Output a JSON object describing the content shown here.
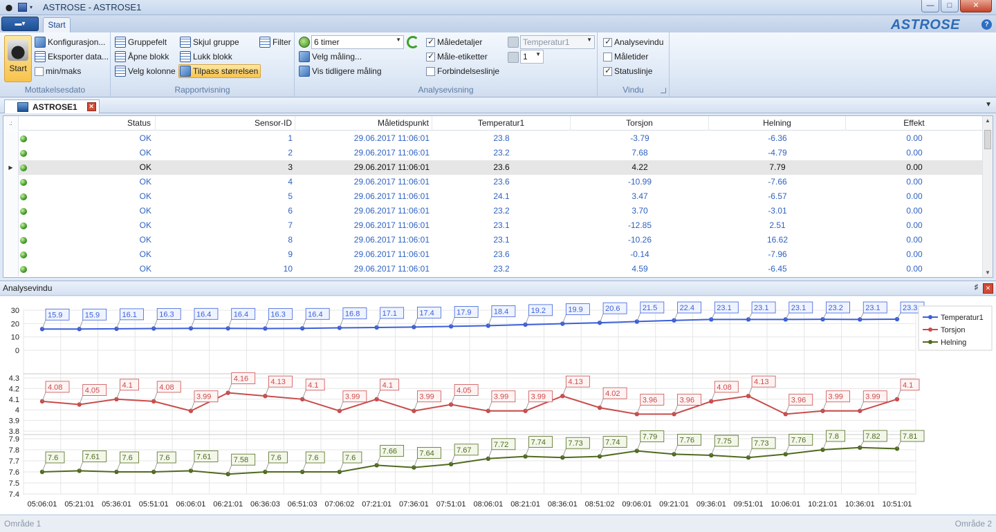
{
  "window": {
    "title": "ASTROSE - ASTROSE1"
  },
  "ribbon": {
    "tab_start": "Start",
    "brand": "ASTROSE",
    "mottak": {
      "start": "Start",
      "konfig": "Konfigurasjon...",
      "eksport": "Eksporter data...",
      "minmaks": "min/maks",
      "label": "Mottakelsesdato"
    },
    "rapport": {
      "gruppefelt": "Gruppefelt",
      "skjul": "Skjul gruppe",
      "filter": "Filter",
      "apne": "Åpne blokk",
      "lukk": "Lukk blokk",
      "velgkol": "Velg kolonne",
      "tilpass": "Tilpass størrelsen",
      "label": "Rapportvisning"
    },
    "analyse": {
      "period": "6 timer",
      "velgmaling": "Velg måling...",
      "vistidl": "Vis tidligere måling",
      "maledetaljer": "Måledetaljer",
      "maleetiketter": "Måle-etiketter",
      "forbindelse": "Forbindelseslinje",
      "temp_combo": "Temperatur1",
      "num_combo": "1",
      "label": "Analysevisning"
    },
    "vindu": {
      "analysevindu": "Analysevindu",
      "maletider": "Måletider",
      "statuslinje": "Statuslinje",
      "label": "Vindu"
    }
  },
  "doc_tab": {
    "label": "ASTROSE1"
  },
  "grid": {
    "headers": [
      "Status",
      "Sensor-ID",
      "Måletidspunkt",
      "Temperatur1",
      "Torsjon",
      "Helning",
      "Effekt"
    ],
    "rows": [
      [
        "OK",
        "1",
        "29.06.2017 11:06:01",
        "23.8",
        "-3.79",
        "-6.36",
        "0.00"
      ],
      [
        "OK",
        "2",
        "29.06.2017 11:06:01",
        "23.2",
        "7.68",
        "-4.79",
        "0.00"
      ],
      [
        "OK",
        "3",
        "29.06.2017 11:06:01",
        "23.6",
        "4.22",
        "7.79",
        "0.00"
      ],
      [
        "OK",
        "4",
        "29.06.2017 11:06:01",
        "23.6",
        "-10.99",
        "-7.66",
        "0.00"
      ],
      [
        "OK",
        "5",
        "29.06.2017 11:06:01",
        "24.1",
        "3.47",
        "-6.57",
        "0.00"
      ],
      [
        "OK",
        "6",
        "29.06.2017 11:06:01",
        "23.2",
        "3.70",
        "-3.01",
        "0.00"
      ],
      [
        "OK",
        "7",
        "29.06.2017 11:06:01",
        "23.1",
        "-12.85",
        "2.51",
        "0.00"
      ],
      [
        "OK",
        "8",
        "29.06.2017 11:06:01",
        "23.1",
        "-10.26",
        "16.62",
        "0.00"
      ],
      [
        "OK",
        "9",
        "29.06.2017 11:06:01",
        "23.6",
        "-0.14",
        "-7.96",
        "0.00"
      ],
      [
        "OK",
        "10",
        "29.06.2017 11:06:01",
        "23.2",
        "4.59",
        "-6.45",
        "0.00"
      ]
    ]
  },
  "analysis": {
    "title": "Analysevindu"
  },
  "chart_data": {
    "type": "line",
    "x": [
      "05:06:01",
      "05:21:01",
      "05:36:01",
      "05:51:01",
      "06:06:01",
      "06:21:01",
      "06:36:03",
      "06:51:03",
      "07:06:02",
      "07:21:01",
      "07:36:01",
      "07:51:01",
      "08:06:01",
      "08:21:01",
      "08:36:01",
      "08:51:02",
      "09:06:01",
      "09:21:01",
      "09:36:01",
      "09:51:01",
      "10:06:01",
      "10:21:01",
      "10:36:01",
      "10:51:01"
    ],
    "series": [
      {
        "name": "Temperatur1",
        "color": "#3b5fd9",
        "ylim": [
          0,
          30
        ],
        "ticks": [
          "30",
          "20",
          "10",
          "0"
        ],
        "values": [
          15.9,
          15.9,
          16.1,
          16.3,
          16.4,
          16.4,
          16.3,
          16.4,
          16.8,
          17.1,
          17.4,
          17.9,
          18.4,
          19.2,
          19.9,
          20.6,
          21.5,
          22.4,
          23.1,
          23.1,
          23.1,
          23.2,
          23.1,
          23.3
        ],
        "labels": [
          "15.9",
          "15.9",
          "16.1",
          "16.3",
          "16.4",
          "16.4",
          "16.3",
          "16.4",
          "16.8",
          "17.1",
          "17.4",
          "17.9",
          "18.4",
          "19.2",
          "19.9",
          "20.6",
          "21.5",
          "22.4",
          "23.1",
          "23.1",
          "23.1",
          "23.2",
          "23.1",
          "23.3"
        ]
      },
      {
        "name": "Torsjon",
        "color": "#c94b4b",
        "ylim": [
          3.8,
          4.3
        ],
        "ticks": [
          "4.3",
          "4.2",
          "4.1",
          "4",
          "3.9",
          "3.8"
        ],
        "values": [
          4.08,
          4.05,
          4.1,
          4.08,
          3.99,
          4.16,
          4.13,
          4.1,
          3.99,
          4.1,
          3.99,
          4.05,
          3.99,
          3.99,
          4.13,
          4.02,
          3.96,
          3.96,
          4.08,
          4.13,
          3.96,
          3.99,
          3.99,
          4.1
        ],
        "labels": [
          "4.08",
          "4.05",
          "4.1",
          "4.08",
          "3.99",
          "4.16",
          "4.13",
          "4.1",
          "3.99",
          "4.1",
          "3.99",
          "4.05",
          "3.99",
          "3.99",
          "4.13",
          "4.02",
          "3.96",
          "3.96",
          "4.08",
          "4.13",
          "3.96",
          "3.99",
          "3.99",
          "4.1"
        ]
      },
      {
        "name": "Helning",
        "color": "#4f6a1e",
        "ylim": [
          7.4,
          7.9
        ],
        "ticks": [
          "7.9",
          "7.8",
          "7.7",
          "7.6",
          "7.5",
          "7.4"
        ],
        "values": [
          7.6,
          7.61,
          7.6,
          7.6,
          7.61,
          7.58,
          7.6,
          7.6,
          7.6,
          7.66,
          7.64,
          7.67,
          7.72,
          7.74,
          7.73,
          7.74,
          7.79,
          7.76,
          7.75,
          7.73,
          7.76,
          7.8,
          7.82,
          7.81
        ],
        "labels": [
          "7.6",
          "7.61",
          "7.6",
          "7.6",
          "7.61",
          "7.58",
          "7.6",
          "7.6",
          "7.6",
          "7.66",
          "7.64",
          "7.67",
          "7.72",
          "7.74",
          "7.73",
          "7.74",
          "7.79",
          "7.76",
          "7.75",
          "7.73",
          "7.76",
          "7.8",
          "7.82",
          "7.81"
        ]
      }
    ],
    "legend_position": "top-right",
    "grid": true
  },
  "status": {
    "left": "Område 1",
    "right": "Område 2"
  }
}
